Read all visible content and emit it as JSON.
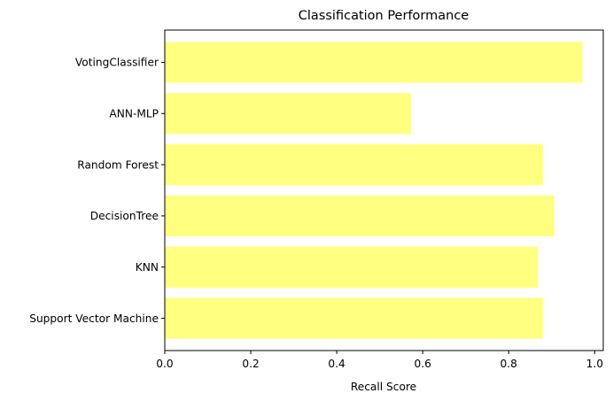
{
  "chart_data": {
    "type": "bar",
    "orientation": "horizontal",
    "title": "Classification Performance",
    "xlabel": "Recall Score",
    "ylabel": "",
    "categories": [
      "Support Vector Machine",
      "KNN",
      "DecisionTree",
      "Random Forest",
      "ANN-MLP",
      "VotingClassifier"
    ],
    "values": [
      0.88,
      0.868,
      0.906,
      0.88,
      0.573,
      0.972
    ],
    "xlim": [
      0.0,
      1.02
    ],
    "xticks": [
      "0.0",
      "0.2",
      "0.4",
      "0.6",
      "0.8",
      "1.0"
    ],
    "xtick_values": [
      0.0,
      0.2,
      0.4,
      0.6,
      0.8,
      1.0
    ],
    "grid": false,
    "legend": "none",
    "colors": {
      "bar": "#ffff80",
      "axis": "#000000"
    }
  }
}
